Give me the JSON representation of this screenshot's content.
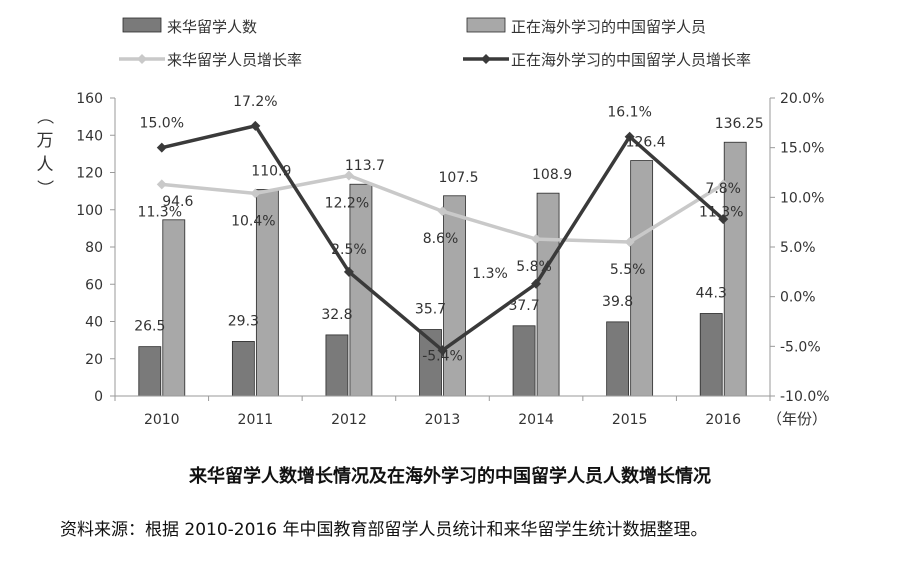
{
  "chart_data": {
    "type": "bar-line-combo",
    "title": "来华留学人数增长情况及在海外学习的中国留学人员人数增长情况",
    "source_note": "资料来源：根据 2010-2016 年中国教育部留学人员统计和来华留学生统计数据整理。",
    "y_left_label": "（万人）",
    "x_unit_label": "（年份）",
    "categories": [
      "2010",
      "2011",
      "2012",
      "2013",
      "2014",
      "2015",
      "2016"
    ],
    "y_left": {
      "min": 0,
      "max": 160,
      "ticks": [
        "0",
        "20",
        "40",
        "60",
        "80",
        "100",
        "120",
        "140",
        "160"
      ]
    },
    "y_right": {
      "min": -10,
      "max": 20,
      "ticks": [
        "-10.0%",
        "-5.0%",
        "0.0%",
        "5.0%",
        "10.0%",
        "15.0%",
        "20.0%"
      ]
    },
    "legend_position": "top",
    "series": [
      {
        "name": "来华留学人数",
        "kind": "bar",
        "axis": "left",
        "color": "#7a7a7a",
        "values": [
          26.5,
          29.3,
          32.8,
          35.7,
          37.7,
          39.8,
          44.3
        ],
        "labels": [
          "26.5",
          "29.3",
          "32.8",
          "35.7",
          "37.7",
          "39.8",
          "44.3"
        ]
      },
      {
        "name": "正在海外学习的中国留学人员",
        "kind": "bar",
        "axis": "left",
        "color": "#a8a8a8",
        "values": [
          94.6,
          110.9,
          113.7,
          107.5,
          108.9,
          126.4,
          136.25
        ],
        "labels": [
          "94.6",
          "110.9",
          "113.7",
          "107.5",
          "108.9",
          "126.4",
          "136.25"
        ]
      },
      {
        "name": "来华留学人员增长率",
        "kind": "line",
        "axis": "right",
        "color": "#c9c9c9",
        "values": [
          11.3,
          10.4,
          12.2,
          8.6,
          5.8,
          5.5,
          11.3
        ],
        "labels": [
          "11.3%",
          "10.4%",
          "12.2%",
          "8.6%",
          "5.8%",
          "5.5%",
          "11.3%"
        ]
      },
      {
        "name": "正在海外学习的中国留学人员增长率",
        "kind": "line",
        "axis": "right",
        "color": "#3a3a3a",
        "values": [
          15.0,
          17.2,
          2.5,
          -5.4,
          1.3,
          16.1,
          7.8
        ],
        "labels": [
          "15.0%",
          "17.2%",
          "2.5%",
          "-5.4%",
          "1.3%",
          "16.1%",
          "7.8%"
        ]
      }
    ]
  }
}
